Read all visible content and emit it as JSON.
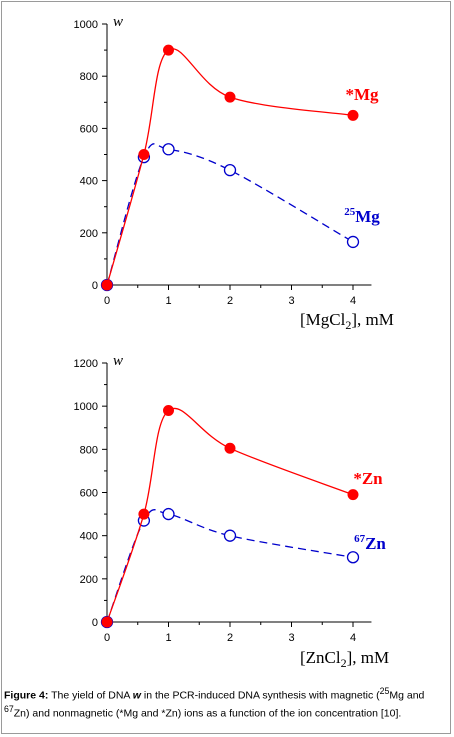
{
  "chart_data": [
    {
      "type": "line",
      "ylabel": "w",
      "xlabel": "[MgCl",
      "xlabel_sub": "2",
      "xlabel_unit": "], mM",
      "xlim": [
        0,
        4.3
      ],
      "ylim": [
        0,
        1000
      ],
      "xticks": [
        0,
        1,
        2,
        3,
        4
      ],
      "yticks": [
        0,
        200,
        400,
        600,
        800,
        1000
      ],
      "series": [
        {
          "name": "*Mg",
          "color": "#ff0000",
          "dashed": false,
          "marker": "filled",
          "x": [
            0,
            0.6,
            1,
            2,
            4
          ],
          "y": [
            0,
            500,
            900,
            720,
            650
          ]
        },
        {
          "name": "25Mg",
          "name_sup": "25",
          "name_base": "Mg",
          "color": "#0000cc",
          "dashed": true,
          "marker": "open",
          "x": [
            0,
            0.6,
            1,
            2,
            4
          ],
          "y": [
            0,
            490,
            520,
            440,
            165
          ]
        }
      ]
    },
    {
      "type": "line",
      "ylabel": "w",
      "xlabel": "[ZnCl",
      "xlabel_sub": "2",
      "xlabel_unit": "], mM",
      "xlim": [
        0,
        4.3
      ],
      "ylim": [
        0,
        1200
      ],
      "xticks": [
        0,
        1,
        2,
        3,
        4
      ],
      "yticks": [
        0,
        200,
        400,
        600,
        800,
        1000,
        1200
      ],
      "series": [
        {
          "name": "*Zn",
          "color": "#ff0000",
          "dashed": false,
          "marker": "filled",
          "x": [
            0,
            0.6,
            1,
            2,
            4
          ],
          "y": [
            0,
            500,
            980,
            805,
            590
          ]
        },
        {
          "name": "67Zn",
          "name_sup": "67",
          "name_base": "Zn",
          "color": "#0000cc",
          "dashed": true,
          "marker": "open",
          "x": [
            0,
            0.6,
            1,
            2,
            4
          ],
          "y": [
            0,
            470,
            500,
            400,
            300
          ]
        }
      ]
    }
  ],
  "caption": {
    "label": "Figure 4:",
    "text_1": " The yield of DNA ",
    "w": "w",
    "text_2": " in the PCR-induced DNA synthesis with magnetic (",
    "sup_1": "25",
    "text_3": "Mg and ",
    "sup_2": "67",
    "text_4": "Zn) and nonmagnetic (*Mg and *Zn) ions as a function of the ion concentration [10]."
  }
}
